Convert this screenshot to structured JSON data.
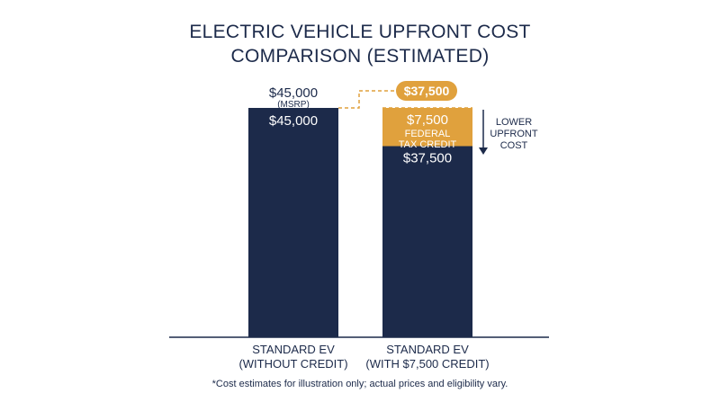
{
  "chart_data": {
    "type": "bar",
    "stacked": true,
    "title_line1": "ELECTRIC VEHICLE UPFRONT COST",
    "title_line2": "COMPARISON (ESTIMATED)",
    "categories": [
      {
        "line1": "STANDARD EV",
        "line2": "(WITHOUT CREDIT)"
      },
      {
        "line1": "STANDARD EV",
        "line2": "(WITH $7,500 CREDIT)"
      }
    ],
    "series": [
      {
        "name": "Cost",
        "color": "#1c2a4a",
        "values": [
          45000,
          37500
        ],
        "labels": [
          "$45,000",
          "$37,500"
        ]
      },
      {
        "name": "Federal Tax Credit",
        "color": "#e0a13d",
        "values": [
          0,
          7500
        ],
        "labels": [
          "",
          "$7,500"
        ]
      }
    ],
    "ylim": [
      0,
      45000
    ],
    "grid": false,
    "annotations": {
      "msrp_value": "$45,000",
      "msrp_note": "(MSRP)",
      "credit_line1": "FEDERAL",
      "credit_line2": "TAX CREDIT",
      "result_badge": "$37,500",
      "arrow_line1": "LOWER",
      "arrow_line2": "UPFRONT",
      "arrow_line3": "COST"
    },
    "colors": {
      "navy": "#1c2a4a",
      "gold": "#e0a13d",
      "white": "#ffffff"
    },
    "footnote": "*Cost estimates for illustration only; actual prices and eligibility vary."
  }
}
